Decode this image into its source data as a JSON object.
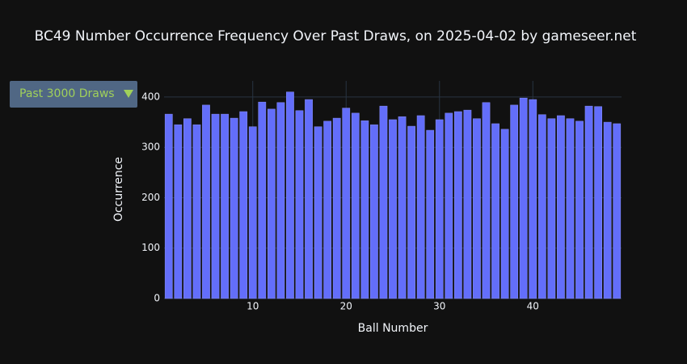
{
  "chart_data": {
    "type": "bar",
    "title": "BC49 Number Occurrence Frequency Over Past Draws, on 2025-04-02 by gameseer.net",
    "dropdown": "Past 3000 Draws",
    "x_label": "Ball Number",
    "y_label": "Occurrence",
    "x": [
      1,
      2,
      3,
      4,
      5,
      6,
      7,
      8,
      9,
      10,
      11,
      12,
      13,
      14,
      15,
      16,
      17,
      18,
      19,
      20,
      21,
      22,
      23,
      24,
      25,
      26,
      27,
      28,
      29,
      30,
      31,
      32,
      33,
      34,
      35,
      36,
      37,
      38,
      39,
      40,
      41,
      42,
      43,
      44,
      45,
      46,
      47,
      48,
      49
    ],
    "values": [
      366,
      345,
      357,
      345,
      384,
      366,
      366,
      358,
      371,
      341,
      390,
      376,
      389,
      410,
      373,
      395,
      341,
      352,
      358,
      378,
      368,
      353,
      345,
      382,
      355,
      361,
      342,
      363,
      334,
      355,
      368,
      371,
      374,
      357,
      389,
      347,
      336,
      384,
      398,
      395,
      365,
      357,
      363,
      357,
      352,
      382,
      381,
      350,
      347
    ],
    "color": "#636efa",
    "xlim": [
      0.5,
      49.5
    ],
    "xticks": [
      10,
      20,
      30,
      40
    ],
    "ylim": [
      0,
      432
    ],
    "yticks": [
      0,
      100,
      200,
      300,
      400
    ],
    "grid": true
  }
}
